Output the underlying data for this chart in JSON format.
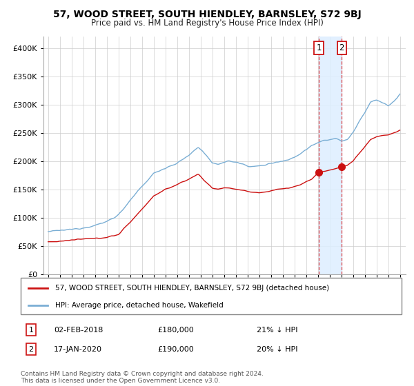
{
  "title": "57, WOOD STREET, SOUTH HIENDLEY, BARNSLEY, S72 9BJ",
  "subtitle": "Price paid vs. HM Land Registry's House Price Index (HPI)",
  "legend_line1": "57, WOOD STREET, SOUTH HIENDLEY, BARNSLEY, S72 9BJ (detached house)",
  "legend_line2": "HPI: Average price, detached house, Wakefield",
  "annotation1_label": "1",
  "annotation1_date": "02-FEB-2018",
  "annotation1_price": "£180,000",
  "annotation1_hpi": "21% ↓ HPI",
  "annotation1_year": 2018.08,
  "annotation1_value": 180000,
  "annotation2_label": "2",
  "annotation2_date": "17-JAN-2020",
  "annotation2_price": "£190,000",
  "annotation2_hpi": "20% ↓ HPI",
  "annotation2_year": 2020.04,
  "annotation2_value": 190000,
  "hpi_color": "#7aaed4",
  "price_color": "#cc1111",
  "marker_color": "#cc1111",
  "dashed_line_color": "#dd4444",
  "shade_color": "#ddeeff",
  "background_color": "#ffffff",
  "grid_color": "#cccccc",
  "ylim": [
    0,
    420000
  ],
  "yticks": [
    0,
    50000,
    100000,
    150000,
    200000,
    250000,
    300000,
    350000,
    400000
  ],
  "footnote": "Contains HM Land Registry data © Crown copyright and database right 2024.\nThis data is licensed under the Open Government Licence v3.0."
}
